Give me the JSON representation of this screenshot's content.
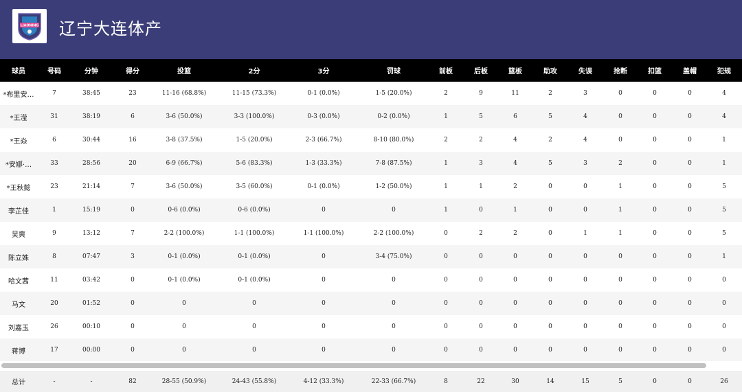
{
  "team": {
    "name": "辽宁大连体产",
    "logo_icon": "liaoning-flying-leopards-logo-icon",
    "logo_text": "LIAONING"
  },
  "columns": [
    "球员",
    "号码",
    "分钟",
    "得分",
    "投篮",
    "2分",
    "3分",
    "罚球",
    "前板",
    "后板",
    "篮板",
    "助攻",
    "失误",
    "抢断",
    "扣篮",
    "盖帽",
    "犯规"
  ],
  "players": [
    [
      "*布里安…",
      "7",
      "38:45",
      "23",
      "11-16 (68.8%)",
      "11-15 (73.3%)",
      "0-1 (0.0%)",
      "1-5 (20.0%)",
      "2",
      "9",
      "11",
      "2",
      "3",
      "0",
      "0",
      "0",
      "4"
    ],
    [
      "*王滢",
      "31",
      "38:19",
      "6",
      "3-6 (50.0%)",
      "3-3 (100.0%)",
      "0-3 (0.0%)",
      "0-2 (0.0%)",
      "1",
      "5",
      "6",
      "5",
      "4",
      "0",
      "0",
      "0",
      "4"
    ],
    [
      "*王焱",
      "6",
      "30:44",
      "16",
      "3-8 (37.5%)",
      "1-5 (20.0%)",
      "2-3 (66.7%)",
      "8-10 (80.0%)",
      "2",
      "2",
      "4",
      "2",
      "4",
      "0",
      "0",
      "0",
      "1"
    ],
    [
      "*安娜·…",
      "33",
      "28:56",
      "20",
      "6-9 (66.7%)",
      "5-6 (83.3%)",
      "1-3 (33.3%)",
      "7-8 (87.5%)",
      "1",
      "3",
      "4",
      "5",
      "3",
      "2",
      "0",
      "0",
      "1"
    ],
    [
      "*王秋懿",
      "23",
      "21:14",
      "7",
      "3-6 (50.0%)",
      "3-5 (60.0%)",
      "0-1 (0.0%)",
      "1-2 (50.0%)",
      "1",
      "1",
      "2",
      "0",
      "0",
      "1",
      "0",
      "0",
      "5"
    ],
    [
      "李芷佳",
      "1",
      "15:19",
      "0",
      "0-6 (0.0%)",
      "0-6 (0.0%)",
      "0",
      "0",
      "1",
      "0",
      "1",
      "0",
      "0",
      "1",
      "0",
      "0",
      "5"
    ],
    [
      "吴爽",
      "9",
      "13:12",
      "7",
      "2-2 (100.0%)",
      "1-1 (100.0%)",
      "1-1 (100.0%)",
      "2-2 (100.0%)",
      "0",
      "2",
      "2",
      "0",
      "1",
      "1",
      "0",
      "0",
      "5"
    ],
    [
      "陈立姝",
      "8",
      "07:47",
      "3",
      "0-1 (0.0%)",
      "0-1 (0.0%)",
      "0",
      "3-4 (75.0%)",
      "0",
      "0",
      "0",
      "0",
      "0",
      "0",
      "0",
      "0",
      "1"
    ],
    [
      "哈文茜",
      "11",
      "03:42",
      "0",
      "0-1 (0.0%)",
      "0-1 (0.0%)",
      "0",
      "0",
      "0",
      "0",
      "0",
      "0",
      "0",
      "0",
      "0",
      "0",
      "0"
    ],
    [
      "马文",
      "20",
      "01:52",
      "0",
      "0",
      "0",
      "0",
      "0",
      "0",
      "0",
      "0",
      "0",
      "0",
      "0",
      "0",
      "0",
      "0"
    ],
    [
      "刘嘉玉",
      "26",
      "00:10",
      "0",
      "0",
      "0",
      "0",
      "0",
      "0",
      "0",
      "0",
      "0",
      "0",
      "0",
      "0",
      "0",
      "0"
    ],
    [
      "蒋博",
      "17",
      "00:00",
      "0",
      "0",
      "0",
      "0",
      "0",
      "0",
      "0",
      "0",
      "0",
      "0",
      "0",
      "0",
      "0",
      "0"
    ]
  ],
  "totals": [
    "总计",
    "-",
    "-",
    "82",
    "28-55 (50.9%)",
    "24-43 (55.8%)",
    "4-12 (33.3%)",
    "22-33 (66.7%)",
    "8",
    "22",
    "30",
    "14",
    "15",
    "5",
    "0",
    "0",
    "26"
  ],
  "colors": {
    "header_bg": "#3b3d78",
    "table_head_bg": "#000000",
    "row_alt_bg": "#f5f5f5"
  }
}
